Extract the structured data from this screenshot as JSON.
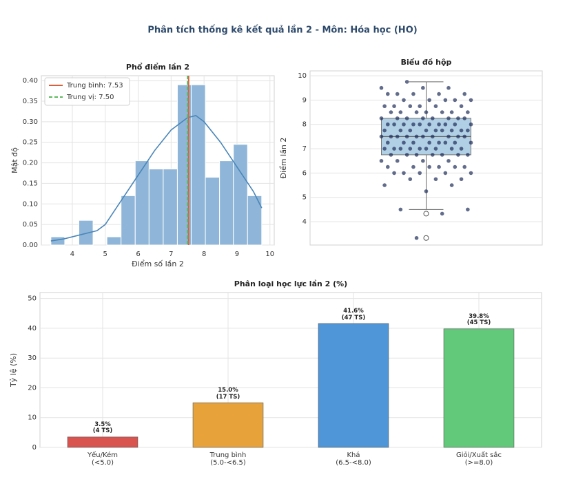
{
  "title": "Phân tích thống kê kết quả lần 2 - Môn: Hóa học (HO)",
  "chart_data": [
    {
      "type": "histogram",
      "title": "Phổ điểm lần 2",
      "xlabel": "Điểm số lần 2",
      "ylabel": "Mật độ",
      "bins": [
        3.35,
        3.77,
        4.2,
        4.63,
        5.05,
        5.48,
        5.91,
        6.33,
        6.76,
        7.19,
        7.61,
        8.04,
        8.47,
        8.89,
        9.32,
        9.75
      ],
      "values": [
        0.02,
        0,
        0.06,
        0,
        0.02,
        0.12,
        0.205,
        0.185,
        0.185,
        0.39,
        0.39,
        0.165,
        0.205,
        0.245,
        0.12
      ],
      "color": "#8fb6d9",
      "line": {
        "color": "#4a86b8",
        "x": [
          3.35,
          3.75,
          4.25,
          4.75,
          5.0,
          5.5,
          6.0,
          6.5,
          7.0,
          7.5,
          7.75,
          8.0,
          8.5,
          9.0,
          9.5,
          9.75
        ],
        "y": [
          0.01,
          0.015,
          0.025,
          0.035,
          0.05,
          0.11,
          0.17,
          0.23,
          0.28,
          0.31,
          0.315,
          0.3,
          0.25,
          0.19,
          0.13,
          0.09
        ]
      },
      "reference_lines": [
        {
          "label": "Trung bình: 7.53",
          "value": 7.53,
          "color": "#d9603b",
          "style": "solid"
        },
        {
          "label": "Trung vị: 7.50",
          "value": 7.5,
          "color": "#5cb85c",
          "style": "dashed"
        }
      ],
      "legend": "upper left",
      "xlim": [
        3.06,
        10.13
      ],
      "xticks": [
        4,
        5,
        6,
        7,
        8,
        9,
        10
      ],
      "ylim": [
        0,
        0.412
      ],
      "yticks": [
        {
          "value": 0,
          "label": "0.00"
        },
        {
          "value": 0.05,
          "label": "0.05"
        },
        {
          "value": 0.1,
          "label": "0.10"
        },
        {
          "value": 0.15,
          "label": "0.15"
        },
        {
          "value": 0.2,
          "label": "0.20"
        },
        {
          "value": 0.25,
          "label": "0.25"
        },
        {
          "value": 0.3,
          "label": "0.30"
        },
        {
          "value": 0.35,
          "label": "0.35"
        },
        {
          "value": 0.4,
          "label": "0.40"
        }
      ],
      "grid": true
    },
    {
      "type": "box",
      "title": "Biểu đồ hộp",
      "ylabel": "Điểm lần 2",
      "box": {
        "whislo": 4.5,
        "q1": 6.75,
        "med": 7.5,
        "q3": 8.25,
        "whishi": 9.75
      },
      "outliers": [
        4.33,
        3.33
      ],
      "box_color": "#a9cce3",
      "point_color": "#1f2d5a",
      "points": [
        3.33,
        4.33,
        4.5,
        4.5,
        5.25,
        5.5,
        5.5,
        5.75,
        5.75,
        5.75,
        6.0,
        6.0,
        6.0,
        6.0,
        6.0,
        6.25,
        6.25,
        6.25,
        6.25,
        6.25,
        6.25,
        6.5,
        6.5,
        6.5,
        6.5,
        6.75,
        6.75,
        6.75,
        6.75,
        6.75,
        6.75,
        6.75,
        7.0,
        7.0,
        7.0,
        7.0,
        7.0,
        7.0,
        7.0,
        7.0,
        7.0,
        7.25,
        7.25,
        7.25,
        7.25,
        7.25,
        7.25,
        7.25,
        7.25,
        7.5,
        7.5,
        7.5,
        7.5,
        7.5,
        7.5,
        7.5,
        7.5,
        7.5,
        7.5,
        7.75,
        7.75,
        7.75,
        7.75,
        7.75,
        7.75,
        7.75,
        7.75,
        7.75,
        8.0,
        8.0,
        8.0,
        8.0,
        8.0,
        8.0,
        8.0,
        8.0,
        8.0,
        8.0,
        8.25,
        8.25,
        8.25,
        8.25,
        8.25,
        8.25,
        8.25,
        8.25,
        8.5,
        8.5,
        8.5,
        8.5,
        8.5,
        8.5,
        8.5,
        8.75,
        8.75,
        8.75,
        8.75,
        8.75,
        8.75,
        9.0,
        9.0,
        9.0,
        9.0,
        9.0,
        9.25,
        9.25,
        9.25,
        9.25,
        9.25,
        9.5,
        9.5,
        9.5,
        9.75
      ],
      "ylim": [
        3.04,
        10.2
      ],
      "yticks": [
        4,
        5,
        6,
        7,
        8,
        9,
        10
      ],
      "grid": true
    },
    {
      "type": "bar",
      "title": "Phân loại học lực lần 2 (%)",
      "ylabel": "Tỷ lệ (%)",
      "categories": [
        "Yếu/Kém\n(<5.0)",
        "Trung bình\n(5.0-<6.5)",
        "Khá\n(6.5-<8.0)",
        "Giỏi/Xuất sắc\n(>=8.0)"
      ],
      "values": [
        3.5,
        15.0,
        41.6,
        39.8
      ],
      "value_labels": [
        "3.5%\n(4 TS)",
        "15.0%\n(17 TS)",
        "41.6%\n(47 TS)",
        "39.8%\n(45 TS)"
      ],
      "colors": [
        "#d9534f",
        "#e8a23a",
        "#4f96d8",
        "#62c87a"
      ],
      "ylim": [
        0,
        52
      ],
      "yticks": [
        0,
        10,
        20,
        30,
        40,
        50
      ],
      "grid": true
    }
  ]
}
